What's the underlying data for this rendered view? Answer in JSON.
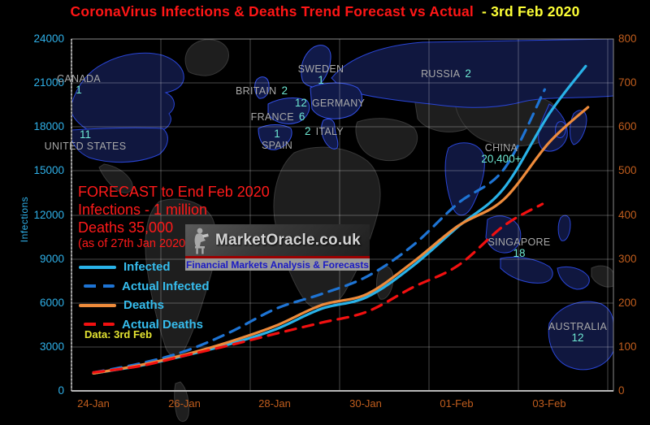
{
  "title": {
    "main": "CoronaVirus Infections & Deaths Trend Forecast vs Actual",
    "date_suffix": "- 3rd Feb 2020"
  },
  "watermark": {
    "brand": "MarketOracle.co.uk",
    "tagline": "Financial Markets Analysis & Forecasts"
  },
  "forecast_note": {
    "line1": "FORECAST to End Feb 2020",
    "line2": "Infections - 1 million",
    "line3": "Deaths 35,000",
    "line4": "(as of 27th Jan 2020)"
  },
  "data_note": "Data: 3rd Feb",
  "map_labels": [
    {
      "name": "CANADA",
      "count": "1"
    },
    {
      "name": "UNITED STATES",
      "count": "11"
    },
    {
      "name": "SWEDEN",
      "count": "1"
    },
    {
      "name": "BRITAIN",
      "count": "2"
    },
    {
      "name": "GERMANY",
      "count": "12"
    },
    {
      "name": "FRANCE",
      "count": "6"
    },
    {
      "name": "SPAIN",
      "count": "1"
    },
    {
      "name": "ITALY",
      "count": "2"
    },
    {
      "name": "RUSSIA",
      "count": "2"
    },
    {
      "name": "CHINA",
      "count": "20,400+"
    },
    {
      "name": "SINGAPORE",
      "count": "18"
    },
    {
      "name": "AUSTRALIA",
      "count": "12"
    }
  ],
  "chart_data": {
    "type": "line",
    "title": "CoronaVirus Infections & Deaths Trend Forecast vs Actual - 3rd Feb 2020",
    "x_axis": {
      "labels": [
        "24-Jan",
        "26-Jan",
        "28-Jan",
        "30-Jan",
        "01-Feb",
        "03-Feb"
      ],
      "grid": true
    },
    "left_axis": {
      "title": "Infections",
      "range": [
        0,
        24000
      ],
      "ticks": [
        "24000",
        "21000",
        "18000",
        "15000",
        "12000",
        "9000",
        "6000",
        "3000",
        "0"
      ]
    },
    "right_axis": {
      "range": [
        0,
        800
      ],
      "ticks": [
        "800",
        "700",
        "600",
        "500",
        "400",
        "300",
        "200",
        "100",
        "0"
      ]
    },
    "legend_position": "left-middle",
    "series": [
      {
        "name": "Infected",
        "axis": "left",
        "style": "solid",
        "color": "#29b2e8",
        "points": [
          [
            0,
            1200
          ],
          [
            1,
            1700
          ],
          [
            2,
            2400
          ],
          [
            3,
            3200
          ],
          [
            4,
            4200
          ],
          [
            5,
            5600
          ],
          [
            6,
            6400
          ],
          [
            7,
            8500
          ],
          [
            8,
            11200
          ],
          [
            9,
            13800
          ],
          [
            10,
            18900
          ],
          [
            10.8,
            22150
          ]
        ]
      },
      {
        "name": "Actual Infected",
        "axis": "left",
        "style": "dashed",
        "color": "#1e74d4",
        "points": [
          [
            0,
            1250
          ],
          [
            1,
            1850
          ],
          [
            2,
            2700
          ],
          [
            3,
            4000
          ],
          [
            4,
            5600
          ],
          [
            5,
            6600
          ],
          [
            6,
            7800
          ],
          [
            7,
            9900
          ],
          [
            8,
            12800
          ],
          [
            9,
            15100
          ],
          [
            9.9,
            20550
          ]
        ]
      },
      {
        "name": "Deaths",
        "axis": "right",
        "style": "solid",
        "color": "#ee8b3b",
        "points": [
          [
            0,
            40
          ],
          [
            1,
            58
          ],
          [
            2,
            82
          ],
          [
            3,
            112
          ],
          [
            4,
            148
          ],
          [
            5,
            195
          ],
          [
            6,
            220
          ],
          [
            7,
            292
          ],
          [
            8,
            375
          ],
          [
            9,
            435
          ],
          [
            10,
            565
          ],
          [
            10.85,
            645
          ]
        ]
      },
      {
        "name": "Actual Deaths",
        "axis": "right",
        "style": "dashed",
        "color": "#f21010",
        "points": [
          [
            0,
            42
          ],
          [
            1,
            56
          ],
          [
            2,
            80
          ],
          [
            3,
            104
          ],
          [
            4,
            130
          ],
          [
            5,
            155
          ],
          [
            6,
            180
          ],
          [
            7,
            235
          ],
          [
            8,
            285
          ],
          [
            9,
            375
          ],
          [
            9.85,
            425
          ]
        ]
      }
    ]
  },
  "colors": {
    "title_red": "#ff1616",
    "title_yellow": "#fdff36",
    "left_axis_text": "#2fb0e8",
    "right_axis_text": "#c05d1d",
    "country_name": "#a8a8a8",
    "country_count": "#6ee9d3",
    "forecast_text": "#ff1a1a",
    "data_note_text": "#e4e432"
  }
}
